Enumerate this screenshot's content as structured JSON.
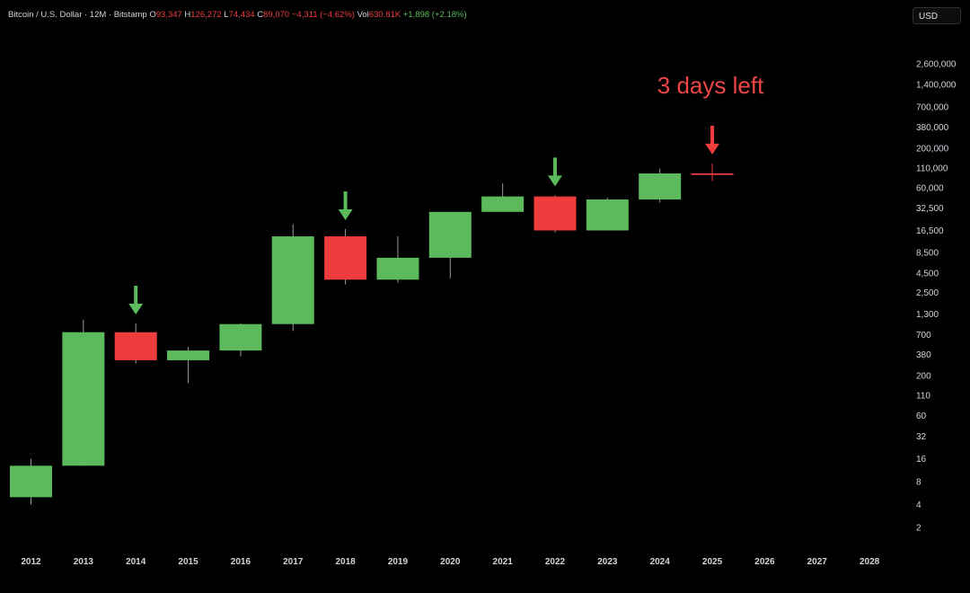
{
  "header": {
    "symbol": "Bitcoin / U.S. Dollar · 12M · Bitstamp",
    "open_label": "O",
    "open_value": "93,347",
    "high_label": "H",
    "high_value": "126,272",
    "low_label": "L",
    "low_value": "74,434",
    "close_label": "C",
    "close_value": "89,070",
    "change": "−4,311 (−4.62%)",
    "vol_label": "Vol",
    "vol_value": "630.81K",
    "vol_change": "+1,898 (+2.18%)"
  },
  "currency_button": "USD",
  "colors": {
    "up": "#5cba5c",
    "down": "#ef3c3c",
    "annotation": "#ef4545",
    "arrow_green": "#5cba5c"
  },
  "chart_data": {
    "type": "candlestick",
    "title": "",
    "y_scale": "log",
    "ylim": [
      1.4,
      4200000
    ],
    "y_ticks": [
      2,
      4,
      8,
      16,
      32,
      60,
      110,
      200,
      380,
      700,
      1300,
      2500,
      4500,
      8500,
      16500,
      32500,
      60000,
      110000,
      200000,
      380000,
      700000,
      1400000,
      2600000
    ],
    "y_tick_labels": [
      "2",
      "4",
      "8",
      "16",
      "32",
      "60",
      "110",
      "200",
      "380",
      "700",
      "1,300",
      "2,500",
      "4,500",
      "8,500",
      "16,500",
      "32,500",
      "60,000",
      "110,000",
      "200,000",
      "380,000",
      "700,000",
      "1,400,000",
      "2,600,000"
    ],
    "x_labels": [
      "2012",
      "2013",
      "2014",
      "2015",
      "2016",
      "2017",
      "2018",
      "2019",
      "2020",
      "2021",
      "2022",
      "2023",
      "2024",
      "2025",
      "2026",
      "2027",
      "2028"
    ],
    "candles": [
      {
        "year": "2012",
        "open": 5,
        "high": 16,
        "low": 4,
        "close": 13
      },
      {
        "year": "2013",
        "open": 13,
        "high": 1100,
        "low": 13,
        "close": 750
      },
      {
        "year": "2014",
        "open": 750,
        "high": 980,
        "low": 290,
        "close": 320
      },
      {
        "year": "2015",
        "open": 320,
        "high": 480,
        "low": 160,
        "close": 430
      },
      {
        "year": "2016",
        "open": 430,
        "high": 980,
        "low": 360,
        "close": 960
      },
      {
        "year": "2017",
        "open": 960,
        "high": 20000,
        "low": 780,
        "close": 13800
      },
      {
        "year": "2018",
        "open": 13800,
        "high": 17200,
        "low": 3200,
        "close": 3700
      },
      {
        "year": "2019",
        "open": 3700,
        "high": 13800,
        "low": 3400,
        "close": 7200
      },
      {
        "year": "2020",
        "open": 7200,
        "high": 29000,
        "low": 3850,
        "close": 29000
      },
      {
        "year": "2021",
        "open": 29000,
        "high": 69000,
        "low": 28800,
        "close": 46300
      },
      {
        "year": "2022",
        "open": 46300,
        "high": 48000,
        "low": 15500,
        "close": 16500
      },
      {
        "year": "2023",
        "open": 16500,
        "high": 44500,
        "low": 16500,
        "close": 42300
      },
      {
        "year": "2024",
        "open": 42300,
        "high": 108000,
        "low": 38500,
        "close": 93300
      },
      {
        "year": "2025",
        "open": 93347,
        "high": 126272,
        "low": 74434,
        "close": 89070
      }
    ],
    "arrows": [
      {
        "year": "2014",
        "color": "green"
      },
      {
        "year": "2018",
        "color": "green"
      },
      {
        "year": "2022",
        "color": "green"
      },
      {
        "year": "2025",
        "color": "red"
      }
    ],
    "annotation": {
      "text": "3 days left",
      "year": "2025"
    }
  }
}
